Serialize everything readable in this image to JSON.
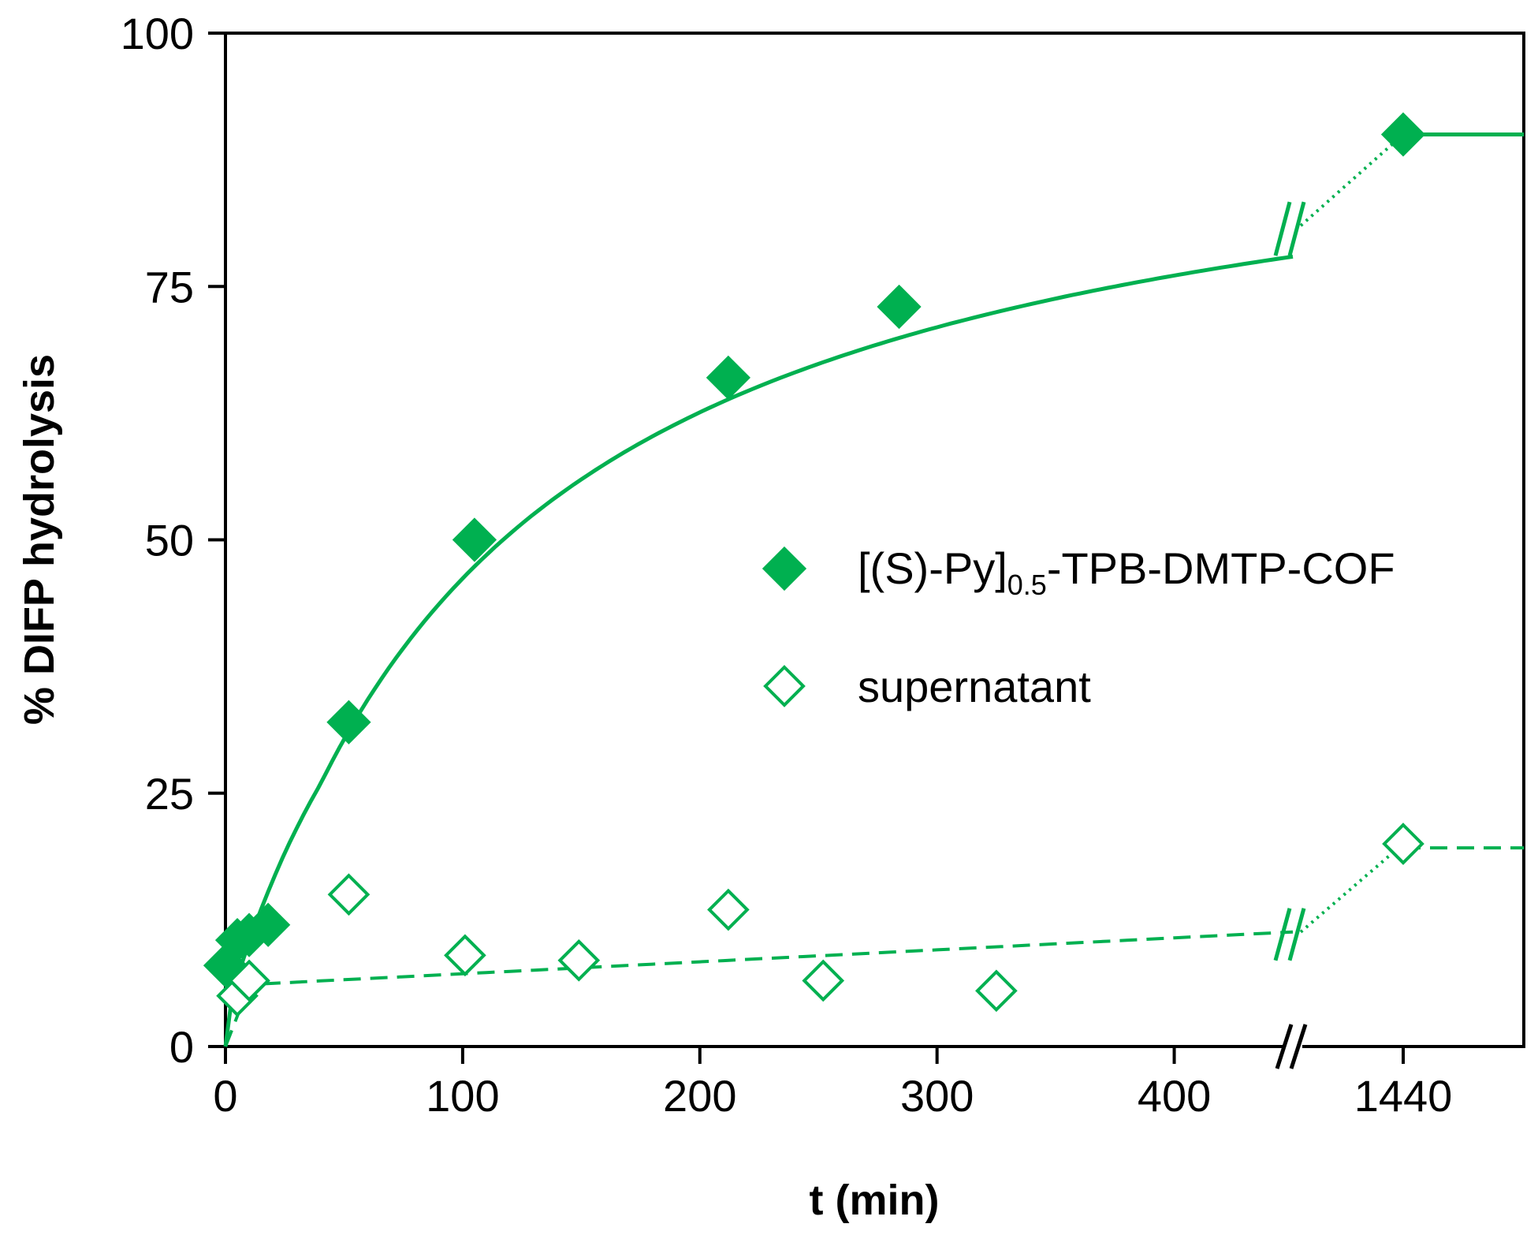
{
  "chart_data": {
    "type": "scatter",
    "title": "",
    "xlabel": "t (min)",
    "ylabel": "% DIFP hydrolysis",
    "ylim": [
      0,
      100
    ],
    "xlim_main": [
      0,
      450
    ],
    "x_break": "after 450 min, axis jumps to 1440",
    "x_ticks": [
      "0",
      "100",
      "200",
      "300",
      "400",
      "1440"
    ],
    "y_ticks": [
      "0",
      "25",
      "50",
      "75",
      "100"
    ],
    "grid": false,
    "legend_position": "center-right",
    "series": [
      {
        "name": "[(S)-Py]0.5-TPB-DMTP-COF",
        "legend_main": "[(S)-Py]",
        "legend_sub": "0.5",
        "legend_rest": "-TPB-DMTP-COF",
        "marker": "filled-diamond",
        "color": "#00b050",
        "points": [
          {
            "x": 0,
            "y": 8
          },
          {
            "x": 5,
            "y": 10.5
          },
          {
            "x": 10,
            "y": 11
          },
          {
            "x": 18,
            "y": 12
          },
          {
            "x": 52,
            "y": 32
          },
          {
            "x": 105,
            "y": 50
          },
          {
            "x": 212,
            "y": 66
          },
          {
            "x": 284,
            "y": 73
          },
          {
            "x": 1440,
            "y": 90
          }
        ],
        "fit_line": "solid"
      },
      {
        "name": "supernatant",
        "legend_main": "supernatant",
        "marker": "open-diamond",
        "color": "#00b050",
        "points": [
          {
            "x": 5,
            "y": 5
          },
          {
            "x": 10,
            "y": 6.5
          },
          {
            "x": 52,
            "y": 15
          },
          {
            "x": 101,
            "y": 9
          },
          {
            "x": 149,
            "y": 8.5
          },
          {
            "x": 212,
            "y": 13.5
          },
          {
            "x": 252,
            "y": 6.5
          },
          {
            "x": 325,
            "y": 5.5
          },
          {
            "x": 1440,
            "y": 20
          }
        ],
        "fit_line": "dashed"
      }
    ]
  }
}
